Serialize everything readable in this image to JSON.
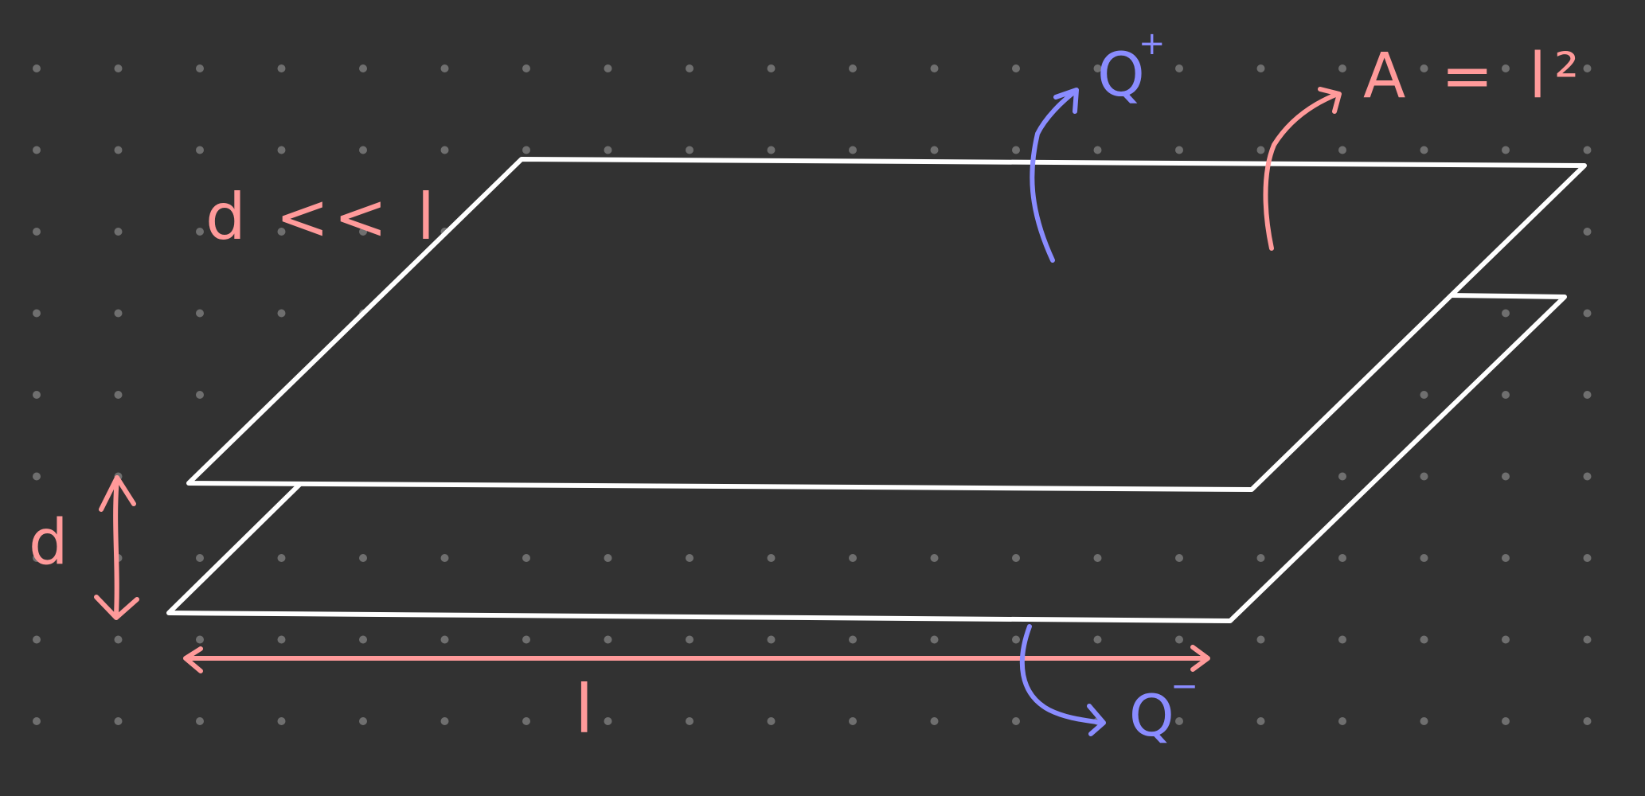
{
  "colors": {
    "background": "#323232",
    "grid_dot": "#6f6f6f",
    "plate": "#ffffff",
    "dimension": "#ff9a9a",
    "charge": "#8a8cff"
  },
  "labels": {
    "condition": "d << l",
    "area_label": "A = l²",
    "q_plus_letter": "Q",
    "q_plus_sign": "+",
    "q_minus_letter": "Q",
    "q_minus_sign": "−",
    "gap": "d",
    "length": "l"
  },
  "icons": {
    "gap_arrow": "double-arrow-vertical",
    "length_arrow": "double-arrow-horizontal",
    "q_plus_arrow": "curved-arrow",
    "q_minus_arrow": "curved-arrow",
    "area_arrow": "curved-arrow"
  }
}
